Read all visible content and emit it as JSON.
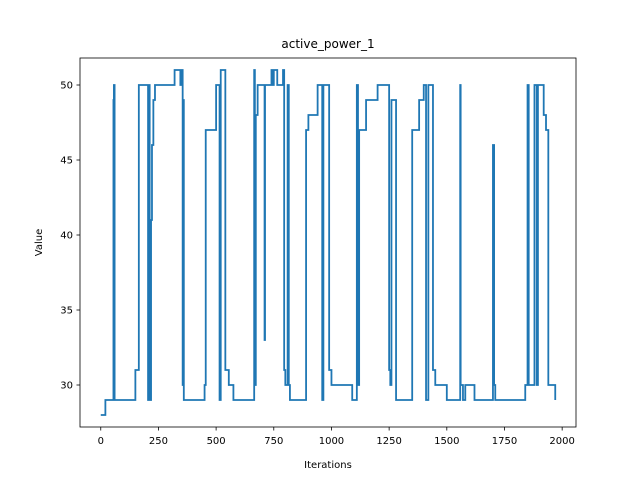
{
  "chart_data": {
    "type": "line",
    "title": "active_power_1",
    "xlabel": "Iterations",
    "ylabel": "Value",
    "xlim": [
      -90,
      2060
    ],
    "ylim": [
      27.2,
      51.8
    ],
    "xticks": [
      0,
      250,
      500,
      750,
      1000,
      1250,
      1500,
      1750,
      2000
    ],
    "yticks": [
      30,
      35,
      40,
      45,
      50
    ],
    "grid": false,
    "line_style": "step",
    "series": [
      {
        "color": "#1f77b4",
        "x": [
          0,
          20,
          50,
          55,
          57,
          60,
          100,
          120,
          150,
          165,
          200,
          205,
          210,
          212,
          215,
          218,
          222,
          228,
          235,
          250,
          320,
          330,
          345,
          350,
          355,
          357,
          360,
          365,
          400,
          450,
          455,
          480,
          500,
          515,
          520,
          530,
          540,
          555,
          575,
          600,
          665,
          668,
          672,
          680,
          710,
          712,
          718,
          720,
          740,
          745,
          750,
          760,
          765,
          790,
          795,
          800,
          810,
          815,
          820,
          850,
          870,
          890,
          900,
          940,
          960,
          965,
          970,
          990,
          1000,
          1050,
          1090,
          1100,
          1110,
          1115,
          1120,
          1150,
          1200,
          1240,
          1250,
          1255,
          1260,
          1280,
          1350,
          1380,
          1400,
          1410,
          1420,
          1440,
          1450,
          1500,
          1550,
          1558,
          1560,
          1570,
          1580,
          1610,
          1620,
          1690,
          1700,
          1705,
          1710,
          1720,
          1800,
          1840,
          1850,
          1855,
          1880,
          1890,
          1895,
          1900,
          1920,
          1930,
          1940,
          1950,
          1960,
          1970
        ],
        "y": [
          28,
          29,
          29,
          49,
          50,
          29,
          29,
          29,
          31,
          50,
          50,
          29,
          50,
          29,
          29,
          41,
          46,
          49,
          50,
          50,
          51,
          51,
          50,
          51,
          30,
          49,
          29,
          29,
          29,
          30,
          47,
          47,
          50,
          29,
          51,
          51,
          31,
          30,
          29,
          29,
          51,
          30,
          48,
          50,
          33,
          50,
          50,
          50,
          51,
          50,
          51,
          51,
          50,
          51,
          31,
          30,
          50,
          30,
          29,
          29,
          29,
          47,
          48,
          50,
          29,
          50,
          50,
          31,
          30,
          30,
          29,
          29,
          50,
          30,
          47,
          49,
          50,
          50,
          31,
          30,
          49,
          29,
          47,
          49,
          50,
          29,
          50,
          31,
          30,
          29,
          29,
          50,
          30,
          29,
          30,
          30,
          29,
          29,
          46,
          30,
          29,
          29,
          29,
          30,
          50,
          30,
          50,
          30,
          50,
          50,
          48,
          47,
          30,
          30,
          30,
          29
        ]
      }
    ]
  }
}
